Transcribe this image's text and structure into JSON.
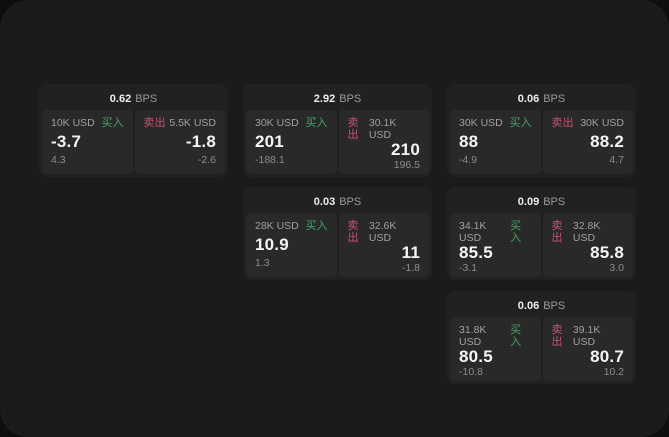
{
  "labels": {
    "bps": "BPS",
    "buy": "买入",
    "sell": "卖出"
  },
  "colors": {
    "background_outer": "#0e0e0e",
    "window_background": "#1b1b1c",
    "card_background": "#212122",
    "panel_background": "#29292a",
    "buy_green": "#42a566",
    "sell_red": "#c6536d",
    "value_white": "#f5f5f5",
    "muted_gray": "#9a9a9a"
  },
  "cards": [
    {
      "bps": "0.62",
      "buy": {
        "amount": "10K USD",
        "price": "-3.7",
        "delta": "4.3"
      },
      "sell": {
        "amount": "5.5K USD",
        "price": "-1.8",
        "delta": "-2.6"
      }
    },
    {
      "bps": "2.92",
      "buy": {
        "amount": "30K USD",
        "price": "201",
        "delta": "-188.1"
      },
      "sell": {
        "amount": "30.1K USD",
        "price": "210",
        "delta": "196.5"
      }
    },
    {
      "bps": "0.06",
      "buy": {
        "amount": "30K USD",
        "price": "88",
        "delta": "-4.9"
      },
      "sell": {
        "amount": "30K USD",
        "price": "88.2",
        "delta": "4.7"
      }
    },
    {
      "bps": "0.03",
      "buy": {
        "amount": "28K USD",
        "price": "10.9",
        "delta": "1.3"
      },
      "sell": {
        "amount": "32.6K USD",
        "price": "11",
        "delta": "-1.8"
      }
    },
    {
      "bps": "0.09",
      "buy": {
        "amount": "34.1K USD",
        "price": "85.5",
        "delta": "-3.1"
      },
      "sell": {
        "amount": "32.8K USD",
        "price": "85.8",
        "delta": "3.0"
      }
    },
    {
      "bps": "0.06",
      "buy": {
        "amount": "31.8K USD",
        "price": "80.5",
        "delta": "-10.8"
      },
      "sell": {
        "amount": "39.1K USD",
        "price": "80.7",
        "delta": "10.2"
      }
    }
  ]
}
